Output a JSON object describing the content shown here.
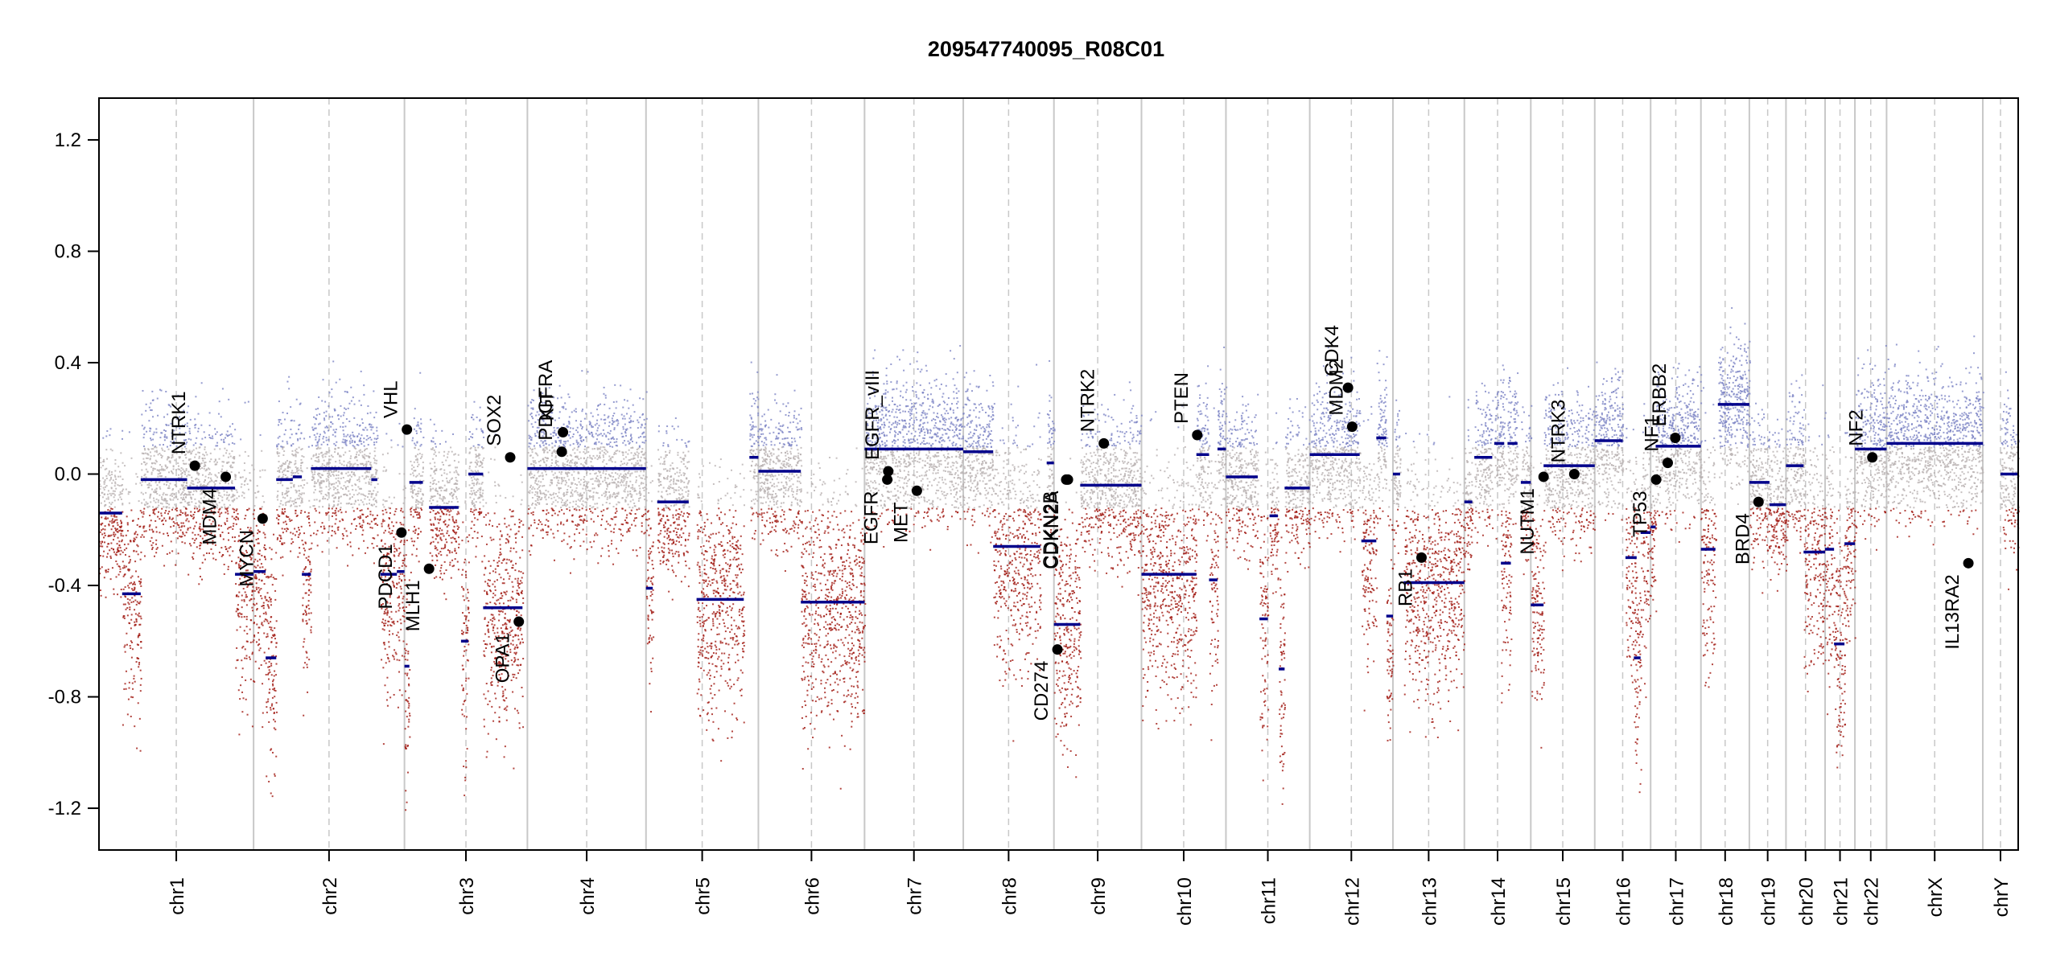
{
  "chart_data": {
    "type": "scatter",
    "title": "209547740095_R08C01",
    "xlabel": "",
    "ylabel": "",
    "ylim": [
      -1.35,
      1.35
    ],
    "yticks": [
      1.2,
      0.8,
      0.4,
      0.0,
      -0.4,
      -0.8,
      -1.2
    ],
    "ytick_labels": [
      "1.2",
      "0.8",
      "0.4",
      "0.0",
      "-0.4",
      "-0.8",
      "-1.2"
    ],
    "grid": false,
    "colors": {
      "gain": "#7c83c4",
      "neutral": "#b8b0b0",
      "loss": "#a01810",
      "segment": "#00008b",
      "gene": "#000000",
      "border": "#c8c8c8",
      "centromere": "#c8c8c8"
    },
    "chromosomes": [
      {
        "name": "chr1",
        "len": 249
      },
      {
        "name": "chr2",
        "len": 243
      },
      {
        "name": "chr3",
        "len": 198
      },
      {
        "name": "chr4",
        "len": 191
      },
      {
        "name": "chr5",
        "len": 181
      },
      {
        "name": "chr6",
        "len": 171
      },
      {
        "name": "chr7",
        "len": 159
      },
      {
        "name": "chr8",
        "len": 146
      },
      {
        "name": "chr9",
        "len": 141
      },
      {
        "name": "chr10",
        "len": 136
      },
      {
        "name": "chr11",
        "len": 135
      },
      {
        "name": "chr12",
        "len": 134
      },
      {
        "name": "chr13",
        "len": 115
      },
      {
        "name": "chr14",
        "len": 107
      },
      {
        "name": "chr15",
        "len": 103
      },
      {
        "name": "chr16",
        "len": 90
      },
      {
        "name": "chr17",
        "len": 81
      },
      {
        "name": "chr18",
        "len": 78
      },
      {
        "name": "chr19",
        "len": 59
      },
      {
        "name": "chr20",
        "len": 63
      },
      {
        "name": "chr21",
        "len": 48
      },
      {
        "name": "chr22",
        "len": 51
      },
      {
        "name": "chrX",
        "len": 155
      },
      {
        "name": "chrY",
        "len": 57
      }
    ],
    "segments": [
      {
        "chr": "chr1",
        "start": 0,
        "end": 0.15,
        "value": -0.14
      },
      {
        "chr": "chr1",
        "start": 0.15,
        "end": 0.27,
        "value": -0.43
      },
      {
        "chr": "chr1",
        "start": 0.27,
        "end": 0.57,
        "value": -0.02
      },
      {
        "chr": "chr1",
        "start": 0.57,
        "end": 0.88,
        "value": -0.05
      },
      {
        "chr": "chr1",
        "start": 0.88,
        "end": 1.0,
        "value": -0.36
      },
      {
        "chr": "chr2",
        "start": 0,
        "end": 0.08,
        "value": -0.35
      },
      {
        "chr": "chr2",
        "start": 0.08,
        "end": 0.15,
        "value": -0.66
      },
      {
        "chr": "chr2",
        "start": 0.15,
        "end": 0.26,
        "value": -0.02
      },
      {
        "chr": "chr2",
        "start": 0.26,
        "end": 0.32,
        "value": -0.01
      },
      {
        "chr": "chr2",
        "start": 0.32,
        "end": 0.38,
        "value": -0.36
      },
      {
        "chr": "chr2",
        "start": 0.38,
        "end": 0.78,
        "value": 0.02
      },
      {
        "chr": "chr2",
        "start": 0.78,
        "end": 0.82,
        "value": -0.02
      },
      {
        "chr": "chr2",
        "start": 0.84,
        "end": 0.95,
        "value": -0.36
      },
      {
        "chr": "chr2",
        "start": 0.95,
        "end": 1.0,
        "value": -0.35
      },
      {
        "chr": "chr3",
        "start": 0,
        "end": 0.04,
        "value": -0.69
      },
      {
        "chr": "chr3",
        "start": 0.04,
        "end": 0.15,
        "value": -0.03
      },
      {
        "chr": "chr3",
        "start": 0.2,
        "end": 0.44,
        "value": -0.12
      },
      {
        "chr": "chr3",
        "start": 0.46,
        "end": 0.52,
        "value": -0.6
      },
      {
        "chr": "chr3",
        "start": 0.52,
        "end": 0.64,
        "value": 0.0
      },
      {
        "chr": "chr3",
        "start": 0.64,
        "end": 0.87,
        "value": -0.48
      },
      {
        "chr": "chr3",
        "start": 0.87,
        "end": 0.96,
        "value": -0.48
      },
      {
        "chr": "chr4",
        "start": 0,
        "end": 1.0,
        "value": 0.02
      },
      {
        "chr": "chr5",
        "start": 0,
        "end": 0.06,
        "value": -0.41
      },
      {
        "chr": "chr5",
        "start": 0.1,
        "end": 0.38,
        "value": -0.1
      },
      {
        "chr": "chr5",
        "start": 0.45,
        "end": 0.87,
        "value": -0.45
      },
      {
        "chr": "chr5",
        "start": 0.92,
        "end": 1.0,
        "value": 0.06
      },
      {
        "chr": "chr6",
        "start": 0,
        "end": 0.4,
        "value": 0.01
      },
      {
        "chr": "chr6",
        "start": 0.4,
        "end": 1.0,
        "value": -0.46
      },
      {
        "chr": "chr7",
        "start": 0,
        "end": 1.0,
        "value": 0.09
      },
      {
        "chr": "chr8",
        "start": 0,
        "end": 0.33,
        "value": 0.08
      },
      {
        "chr": "chr8",
        "start": 0.33,
        "end": 0.85,
        "value": -0.26
      },
      {
        "chr": "chr8",
        "start": 0.92,
        "end": 1.0,
        "value": 0.04
      },
      {
        "chr": "chr9",
        "start": 0,
        "end": 0.3,
        "value": -0.54
      },
      {
        "chr": "chr9",
        "start": 0.3,
        "end": 1.0,
        "value": -0.04
      },
      {
        "chr": "chr10",
        "start": 0,
        "end": 0.65,
        "value": -0.36
      },
      {
        "chr": "chr10",
        "start": 0.65,
        "end": 0.8,
        "value": 0.07
      },
      {
        "chr": "chr10",
        "start": 0.8,
        "end": 0.9,
        "value": -0.38
      },
      {
        "chr": "chr10",
        "start": 0.9,
        "end": 1.0,
        "value": 0.09
      },
      {
        "chr": "chr11",
        "start": 0,
        "end": 0.38,
        "value": -0.01
      },
      {
        "chr": "chr11",
        "start": 0.4,
        "end": 0.5,
        "value": -0.52
      },
      {
        "chr": "chr11",
        "start": 0.52,
        "end": 0.62,
        "value": -0.15
      },
      {
        "chr": "chr11",
        "start": 0.63,
        "end": 0.7,
        "value": -0.7
      },
      {
        "chr": "chr11",
        "start": 0.7,
        "end": 1.0,
        "value": -0.05
      },
      {
        "chr": "chr12",
        "start": 0,
        "end": 0.6,
        "value": 0.07
      },
      {
        "chr": "chr12",
        "start": 0.62,
        "end": 0.8,
        "value": -0.24
      },
      {
        "chr": "chr12",
        "start": 0.8,
        "end": 0.92,
        "value": 0.13
      },
      {
        "chr": "chr12",
        "start": 0.92,
        "end": 1.0,
        "value": -0.51
      },
      {
        "chr": "chr13",
        "start": 0,
        "end": 0.1,
        "value": 0.0
      },
      {
        "chr": "chr13",
        "start": 0.15,
        "end": 1.0,
        "value": -0.39
      },
      {
        "chr": "chr14",
        "start": 0,
        "end": 0.12,
        "value": -0.1
      },
      {
        "chr": "chr14",
        "start": 0.15,
        "end": 0.42,
        "value": 0.06
      },
      {
        "chr": "chr14",
        "start": 0.45,
        "end": 0.6,
        "value": 0.11
      },
      {
        "chr": "chr14",
        "start": 0.55,
        "end": 0.7,
        "value": -0.32
      },
      {
        "chr": "chr14",
        "start": 0.65,
        "end": 0.8,
        "value": 0.11
      },
      {
        "chr": "chr14",
        "start": 0.85,
        "end": 1.0,
        "value": -0.03
      },
      {
        "chr": "chr15",
        "start": 0,
        "end": 0.2,
        "value": -0.47
      },
      {
        "chr": "chr15",
        "start": 0.2,
        "end": 1.0,
        "value": 0.03
      },
      {
        "chr": "chr16",
        "start": 0,
        "end": 0.5,
        "value": 0.12
      },
      {
        "chr": "chr16",
        "start": 0.55,
        "end": 0.75,
        "value": -0.3
      },
      {
        "chr": "chr16",
        "start": 0.7,
        "end": 0.82,
        "value": -0.66
      },
      {
        "chr": "chr16",
        "start": 0.82,
        "end": 1.0,
        "value": -0.21
      },
      {
        "chr": "chr17",
        "start": 0,
        "end": 0.1,
        "value": -0.19
      },
      {
        "chr": "chr17",
        "start": 0.1,
        "end": 1.0,
        "value": 0.1
      },
      {
        "chr": "chr18",
        "start": 0,
        "end": 0.3,
        "value": -0.27
      },
      {
        "chr": "chr18",
        "start": 0.35,
        "end": 1.0,
        "value": 0.25
      },
      {
        "chr": "chr19",
        "start": 0,
        "end": 0.55,
        "value": -0.03
      },
      {
        "chr": "chr19",
        "start": 0.55,
        "end": 1.0,
        "value": -0.11
      },
      {
        "chr": "chr20",
        "start": 0,
        "end": 0.45,
        "value": 0.03
      },
      {
        "chr": "chr20",
        "start": 0.45,
        "end": 1.0,
        "value": -0.28
      },
      {
        "chr": "chr21",
        "start": 0,
        "end": 0.3,
        "value": -0.27
      },
      {
        "chr": "chr21",
        "start": 0.3,
        "end": 0.65,
        "value": -0.61
      },
      {
        "chr": "chr21",
        "start": 0.65,
        "end": 1.0,
        "value": -0.25
      },
      {
        "chr": "chr22",
        "start": 0,
        "end": 1.0,
        "value": 0.09
      },
      {
        "chr": "chrX",
        "start": 0,
        "end": 1.0,
        "value": 0.11
      },
      {
        "chr": "chrY",
        "start": 0.5,
        "end": 1.0,
        "value": 0.0
      }
    ],
    "genes": [
      {
        "name": "NTRK1",
        "chr": "chr1",
        "pos": 0.62,
        "value": 0.03
      },
      {
        "name": "MDM4",
        "chr": "chr1",
        "pos": 0.82,
        "value": -0.01
      },
      {
        "name": "MYCN",
        "chr": "chr2",
        "pos": 0.06,
        "value": -0.16
      },
      {
        "name": "VHL",
        "chr": "chr3",
        "pos": 0.02,
        "value": 0.16
      },
      {
        "name": "PDCD1",
        "chr": "chr2",
        "pos": 0.98,
        "value": -0.21
      },
      {
        "name": "MLH1",
        "chr": "chr3",
        "pos": 0.2,
        "value": -0.34
      },
      {
        "name": "SOX2",
        "chr": "chr3",
        "pos": 0.86,
        "value": 0.06
      },
      {
        "name": "OPA1",
        "chr": "chr3",
        "pos": 0.93,
        "value": -0.53
      },
      {
        "name": "KIT",
        "chr": "chr4",
        "pos": 0.3,
        "value": 0.15
      },
      {
        "name": "PDGFRA",
        "chr": "chr4",
        "pos": 0.29,
        "value": 0.08
      },
      {
        "name": "EGFR_vIII",
        "chr": "chr7",
        "pos": 0.24,
        "value": 0.01
      },
      {
        "name": "EGFR",
        "chr": "chr7",
        "pos": 0.23,
        "value": -0.02
      },
      {
        "name": "MET",
        "chr": "chr7",
        "pos": 0.53,
        "value": -0.06
      },
      {
        "name": "CD274",
        "chr": "chr9",
        "pos": 0.04,
        "value": -0.63
      },
      {
        "name": "CDKN2A",
        "chr": "chr9",
        "pos": 0.16,
        "value": -0.02
      },
      {
        "name": "CDKN2B",
        "chr": "chr9",
        "pos": 0.14,
        "value": -0.02
      },
      {
        "name": "NTRK2",
        "chr": "chr9",
        "pos": 0.57,
        "value": 0.11
      },
      {
        "name": "PTEN",
        "chr": "chr10",
        "pos": 0.66,
        "value": 0.14
      },
      {
        "name": "CDK4",
        "chr": "chr12",
        "pos": 0.46,
        "value": 0.31
      },
      {
        "name": "MDM2",
        "chr": "chr12",
        "pos": 0.51,
        "value": 0.17
      },
      {
        "name": "RB1",
        "chr": "chr13",
        "pos": 0.4,
        "value": -0.3
      },
      {
        "name": "NUTM1",
        "chr": "chr15",
        "pos": 0.2,
        "value": -0.01
      },
      {
        "name": "NTRK3",
        "chr": "chr15",
        "pos": 0.68,
        "value": 0.0
      },
      {
        "name": "TP53",
        "chr": "chr17",
        "pos": 0.11,
        "value": -0.02
      },
      {
        "name": "NF1",
        "chr": "chr17",
        "pos": 0.34,
        "value": 0.04
      },
      {
        "name": "ERBB2",
        "chr": "chr17",
        "pos": 0.49,
        "value": 0.13
      },
      {
        "name": "BRD4",
        "chr": "chr19",
        "pos": 0.25,
        "value": -0.1
      },
      {
        "name": "NF2",
        "chr": "chr22",
        "pos": 0.55,
        "value": 0.06
      },
      {
        "name": "IL13RA2",
        "chrX": true,
        "chr": "chrX",
        "pos": 0.85,
        "value": -0.32
      }
    ]
  }
}
